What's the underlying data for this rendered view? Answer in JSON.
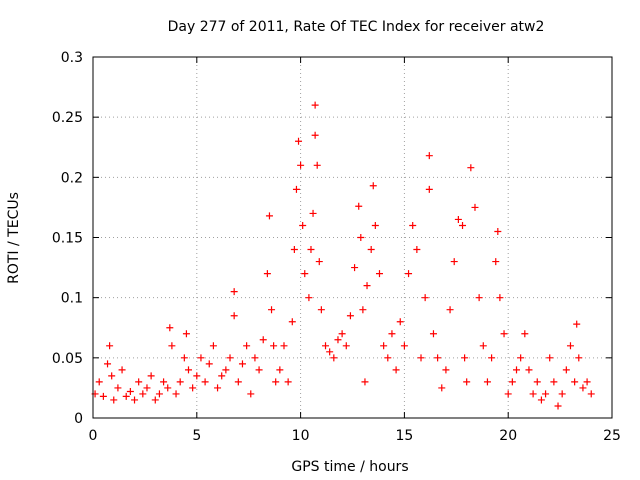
{
  "chart_data": {
    "type": "scatter",
    "title": "Day 277 of 2011, Rate Of TEC Index for receiver atw2",
    "xlabel": "GPS time / hours",
    "ylabel": "ROTI / TECUs",
    "xlim": [
      0,
      25
    ],
    "ylim": [
      0,
      0.3
    ],
    "xticks": [
      "0",
      "5",
      "10",
      "15",
      "20",
      "25"
    ],
    "yticks": [
      "0",
      "0.05",
      "0.1",
      "0.15",
      "0.2",
      "0.25",
      "0.3"
    ],
    "grid": true,
    "marker": "+",
    "marker_color": "#ff0000",
    "series": [
      {
        "x": [
          0.1,
          0.3,
          0.5,
          0.7,
          0.8,
          0.9,
          1.0,
          1.2,
          1.4,
          1.6,
          1.8,
          2.0,
          2.2,
          2.4,
          2.6,
          2.8,
          3.0,
          3.2,
          3.4,
          3.6,
          3.7,
          3.8,
          4.0,
          4.2,
          4.4,
          4.5,
          4.6,
          4.8,
          5.0,
          5.2,
          5.4,
          5.6,
          5.8,
          6.0,
          6.2,
          6.4,
          6.6,
          6.8,
          6.8,
          7.0,
          7.2,
          7.4,
          7.6,
          7.8,
          8.0,
          8.2,
          8.4,
          8.5,
          8.6,
          8.7,
          8.8,
          9.0,
          9.2,
          9.4,
          9.6,
          9.7,
          9.8,
          9.9,
          10.0,
          10.1,
          10.2,
          10.4,
          10.5,
          10.6,
          10.7,
          10.7,
          10.8,
          10.9,
          11.0,
          11.2,
          11.4,
          11.6,
          11.8,
          12.0,
          12.2,
          12.4,
          12.6,
          12.8,
          12.9,
          13.0,
          13.1,
          13.2,
          13.4,
          13.5,
          13.6,
          13.8,
          14.0,
          14.2,
          14.4,
          14.6,
          14.8,
          15.0,
          15.2,
          15.4,
          15.6,
          15.8,
          16.0,
          16.2,
          16.2,
          16.4,
          16.6,
          16.8,
          17.0,
          17.2,
          17.4,
          17.6,
          17.8,
          17.9,
          18.0,
          18.2,
          18.4,
          18.6,
          18.8,
          19.0,
          19.2,
          19.4,
          19.5,
          19.6,
          19.8,
          20.0,
          20.2,
          20.4,
          20.6,
          20.8,
          21.0,
          21.2,
          21.4,
          21.6,
          21.8,
          22.0,
          22.2,
          22.4,
          22.6,
          22.8,
          23.0,
          23.2,
          23.3,
          23.4,
          23.6,
          23.8,
          24.0
        ],
        "y": [
          0.02,
          0.03,
          0.018,
          0.045,
          0.06,
          0.035,
          0.015,
          0.025,
          0.04,
          0.018,
          0.022,
          0.015,
          0.03,
          0.02,
          0.025,
          0.035,
          0.015,
          0.02,
          0.03,
          0.025,
          0.075,
          0.06,
          0.02,
          0.03,
          0.05,
          0.07,
          0.04,
          0.025,
          0.035,
          0.05,
          0.03,
          0.045,
          0.06,
          0.025,
          0.035,
          0.04,
          0.05,
          0.105,
          0.085,
          0.03,
          0.045,
          0.06,
          0.02,
          0.05,
          0.04,
          0.065,
          0.12,
          0.168,
          0.09,
          0.06,
          0.03,
          0.04,
          0.06,
          0.03,
          0.08,
          0.14,
          0.19,
          0.23,
          0.21,
          0.16,
          0.12,
          0.1,
          0.14,
          0.17,
          0.26,
          0.235,
          0.21,
          0.13,
          0.09,
          0.06,
          0.055,
          0.05,
          0.065,
          0.07,
          0.06,
          0.085,
          0.125,
          0.176,
          0.15,
          0.09,
          0.03,
          0.11,
          0.14,
          0.193,
          0.16,
          0.12,
          0.06,
          0.05,
          0.07,
          0.04,
          0.08,
          0.06,
          0.12,
          0.16,
          0.14,
          0.05,
          0.1,
          0.218,
          0.19,
          0.07,
          0.05,
          0.025,
          0.04,
          0.09,
          0.13,
          0.165,
          0.16,
          0.05,
          0.03,
          0.208,
          0.175,
          0.1,
          0.06,
          0.03,
          0.05,
          0.13,
          0.155,
          0.1,
          0.07,
          0.02,
          0.03,
          0.04,
          0.05,
          0.07,
          0.04,
          0.02,
          0.03,
          0.015,
          0.02,
          0.05,
          0.03,
          0.01,
          0.02,
          0.04,
          0.06,
          0.03,
          0.078,
          0.05,
          0.025,
          0.03,
          0.02
        ]
      }
    ]
  }
}
